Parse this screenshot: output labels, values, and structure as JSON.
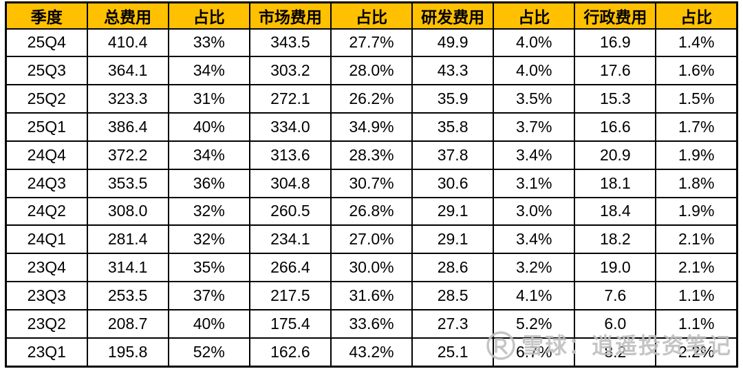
{
  "chart_data": {
    "type": "table",
    "columns": [
      "季度",
      "总费用",
      "占比",
      "市场费用",
      "占比",
      "研发费用",
      "占比",
      "行政费用",
      "占比"
    ],
    "rows": [
      [
        "25Q4",
        "410.4",
        "33%",
        "343.5",
        "27.7%",
        "49.9",
        "4.0%",
        "16.9",
        "1.4%"
      ],
      [
        "25Q3",
        "364.1",
        "34%",
        "303.2",
        "28.0%",
        "43.3",
        "4.0%",
        "17.6",
        "1.6%"
      ],
      [
        "25Q2",
        "323.3",
        "31%",
        "272.1",
        "26.2%",
        "35.9",
        "3.5%",
        "15.3",
        "1.5%"
      ],
      [
        "25Q1",
        "386.4",
        "40%",
        "334.0",
        "34.9%",
        "35.8",
        "3.7%",
        "16.6",
        "1.7%"
      ],
      [
        "24Q4",
        "372.2",
        "34%",
        "313.6",
        "28.3%",
        "37.8",
        "3.4%",
        "20.9",
        "1.9%"
      ],
      [
        "24Q3",
        "353.5",
        "36%",
        "304.8",
        "30.7%",
        "30.6",
        "3.1%",
        "18.1",
        "1.8%"
      ],
      [
        "24Q2",
        "308.0",
        "32%",
        "260.5",
        "26.8%",
        "29.1",
        "3.0%",
        "18.4",
        "1.9%"
      ],
      [
        "24Q1",
        "281.4",
        "32%",
        "234.1",
        "27.0%",
        "29.1",
        "3.4%",
        "18.2",
        "2.1%"
      ],
      [
        "23Q4",
        "314.1",
        "35%",
        "266.4",
        "30.0%",
        "28.6",
        "3.2%",
        "19.0",
        "2.1%"
      ],
      [
        "23Q3",
        "253.5",
        "37%",
        "217.5",
        "31.6%",
        "28.5",
        "4.1%",
        "7.6",
        "1.1%"
      ],
      [
        "23Q2",
        "208.7",
        "40%",
        "175.4",
        "33.6%",
        "27.3",
        "5.2%",
        "6.0",
        "1.1%"
      ],
      [
        "23Q1",
        "195.8",
        "52%",
        "162.6",
        "43.2%",
        "25.1",
        "6.7%",
        "8.2",
        "2.2%"
      ]
    ],
    "legend": [],
    "grid": true
  },
  "watermark": {
    "text": "雪球：逍遥投资笔记",
    "logo": "xueqiu-logo"
  },
  "colors": {
    "header_bg": "#FFC000",
    "header_text": "#000000",
    "cell_bg": "#ffffff",
    "border": "#000000",
    "watermark": "#bfbfbf"
  }
}
